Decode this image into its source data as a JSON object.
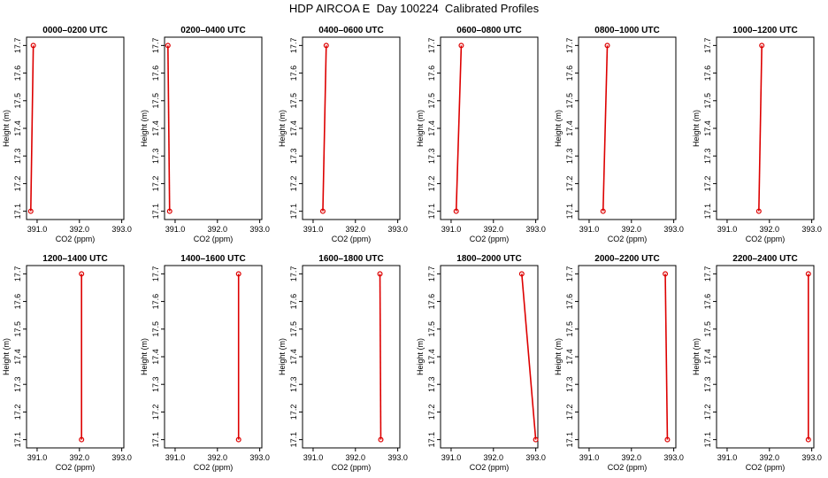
{
  "title": "HDP AIRCOA E  Day 100224  Calibrated Profiles",
  "chart_data": {
    "type": "line",
    "xlabel": "CO2 (ppm)",
    "ylabel": "Height (m)",
    "xlim": [
      390.75,
      393.05
    ],
    "ylim": [
      17.07,
      17.73
    ],
    "x_ticks": [
      391.0,
      392.0,
      393.0
    ],
    "x_tick_labels": [
      "391.0",
      "392.0",
      "393.0"
    ],
    "y_ticks": [
      17.1,
      17.2,
      17.3,
      17.4,
      17.5,
      17.6,
      17.7
    ],
    "y_tick_labels": [
      "17.1",
      "17.2",
      "17.3",
      "17.4",
      "17.5",
      "17.6",
      "17.7"
    ],
    "grid": false,
    "line_color": "#dd0000",
    "panels": [
      {
        "title": "0000–0200 UTC",
        "points": [
          {
            "x": 390.85,
            "y": 17.1
          },
          {
            "x": 390.91,
            "y": 17.7
          }
        ]
      },
      {
        "title": "0200–0400 UTC",
        "points": [
          {
            "x": 390.87,
            "y": 17.1
          },
          {
            "x": 390.83,
            "y": 17.7
          }
        ]
      },
      {
        "title": "0400–0600 UTC",
        "points": [
          {
            "x": 391.23,
            "y": 17.1
          },
          {
            "x": 391.31,
            "y": 17.7
          }
        ]
      },
      {
        "title": "0600–0800 UTC",
        "points": [
          {
            "x": 391.12,
            "y": 17.1
          },
          {
            "x": 391.24,
            "y": 17.7
          }
        ]
      },
      {
        "title": "0800–1000 UTC",
        "points": [
          {
            "x": 391.33,
            "y": 17.1
          },
          {
            "x": 391.43,
            "y": 17.7
          }
        ]
      },
      {
        "title": "1000–1200 UTC",
        "points": [
          {
            "x": 391.75,
            "y": 17.1
          },
          {
            "x": 391.82,
            "y": 17.7
          }
        ]
      },
      {
        "title": "1200–1400 UTC",
        "points": [
          {
            "x": 392.05,
            "y": 17.1
          },
          {
            "x": 392.05,
            "y": 17.7
          }
        ]
      },
      {
        "title": "1400–1600 UTC",
        "points": [
          {
            "x": 392.5,
            "y": 17.1
          },
          {
            "x": 392.5,
            "y": 17.7
          }
        ]
      },
      {
        "title": "1600–1800 UTC",
        "points": [
          {
            "x": 392.6,
            "y": 17.1
          },
          {
            "x": 392.58,
            "y": 17.7
          }
        ]
      },
      {
        "title": "1800–2000 UTC",
        "points": [
          {
            "x": 393.0,
            "y": 17.1
          },
          {
            "x": 392.67,
            "y": 17.7
          }
        ]
      },
      {
        "title": "2000–2200 UTC",
        "points": [
          {
            "x": 392.85,
            "y": 17.1
          },
          {
            "x": 392.8,
            "y": 17.7
          }
        ]
      },
      {
        "title": "2200–2400 UTC",
        "points": [
          {
            "x": 392.92,
            "y": 17.1
          },
          {
            "x": 392.92,
            "y": 17.7
          }
        ]
      }
    ]
  }
}
